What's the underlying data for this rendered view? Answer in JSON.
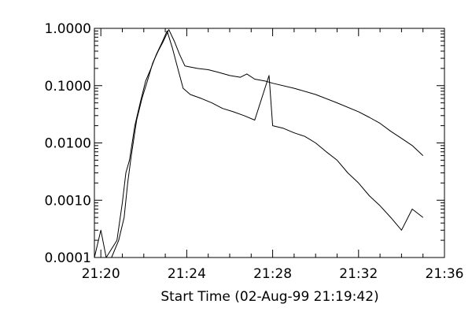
{
  "chart_data": {
    "type": "line",
    "title": "",
    "xlabel": "Start Time (02-Aug-99 21:19:42)",
    "ylabel": "",
    "yscale": "log",
    "xlim": [
      "21:19:42",
      "21:36:00"
    ],
    "ylim": [
      0.0001,
      1.0
    ],
    "grid": false,
    "x_ticks": [
      "21:20",
      "21:24",
      "21:28",
      "21:32",
      "21:36"
    ],
    "y_ticks": [
      "0.0001",
      "0.0010",
      "0.0100",
      "0.1000",
      "1.0000"
    ],
    "series": [
      {
        "points": [
          [
            "21:20:30",
            0.0001
          ],
          [
            "21:20:50",
            0.0002
          ],
          [
            "21:21:05",
            0.0005
          ],
          [
            "21:21:15",
            0.002
          ],
          [
            "21:21:25",
            0.006
          ],
          [
            "21:21:40",
            0.025
          ],
          [
            "21:21:55",
            0.06
          ],
          [
            "21:22:10",
            0.12
          ],
          [
            "21:22:25",
            0.25
          ],
          [
            "21:22:40",
            0.4
          ],
          [
            "21:22:55",
            0.6
          ],
          [
            "21:23:10",
            0.95
          ],
          [
            "21:23:25",
            0.6
          ],
          [
            "21:23:40",
            0.35
          ],
          [
            "21:23:55",
            0.22
          ],
          [
            "21:24:30",
            0.2
          ],
          [
            "21:25:00",
            0.19
          ],
          [
            "21:25:30",
            0.17
          ],
          [
            "21:26:00",
            0.15
          ],
          [
            "21:26:30",
            0.14
          ],
          [
            "21:26:48",
            0.16
          ],
          [
            "21:27:10",
            0.13
          ],
          [
            "21:27:40",
            0.12
          ],
          [
            "21:28:00",
            0.11
          ],
          [
            "21:29:00",
            0.09
          ],
          [
            "21:30:00",
            0.07
          ],
          [
            "21:31:00",
            0.05
          ],
          [
            "21:32:00",
            0.035
          ],
          [
            "21:32:30",
            0.028
          ],
          [
            "21:33:00",
            0.022
          ],
          [
            "21:33:30",
            0.016
          ],
          [
            "21:34:00",
            0.012
          ],
          [
            "21:34:30",
            0.009
          ],
          [
            "21:35:00",
            0.006
          ]
        ]
      },
      {
        "points": [
          [
            "21:19:42",
            0.0001
          ],
          [
            "21:20:00",
            0.0003
          ],
          [
            "21:20:15",
            0.0001
          ],
          [
            "21:20:45",
            0.0002
          ],
          [
            "21:21:00",
            0.0009
          ],
          [
            "21:21:10",
            0.003
          ],
          [
            "21:21:20",
            0.005
          ],
          [
            "21:21:35",
            0.02
          ],
          [
            "21:21:50",
            0.05
          ],
          [
            "21:22:05",
            0.12
          ],
          [
            "21:22:20",
            0.2
          ],
          [
            "21:22:35",
            0.35
          ],
          [
            "21:22:50",
            0.55
          ],
          [
            "21:23:05",
            0.9
          ],
          [
            "21:23:20",
            0.45
          ],
          [
            "21:23:35",
            0.2
          ],
          [
            "21:23:50",
            0.09
          ],
          [
            "21:24:10",
            0.07
          ],
          [
            "21:24:40",
            0.06
          ],
          [
            "21:25:10",
            0.05
          ],
          [
            "21:25:40",
            0.04
          ],
          [
            "21:26:10",
            0.035
          ],
          [
            "21:26:40",
            0.03
          ],
          [
            "21:27:10",
            0.025
          ],
          [
            "21:27:50",
            0.15
          ],
          [
            "21:28:00",
            0.02
          ],
          [
            "21:28:30",
            0.018
          ],
          [
            "21:29:00",
            0.015
          ],
          [
            "21:29:30",
            0.013
          ],
          [
            "21:30:00",
            0.01
          ],
          [
            "21:30:30",
            0.007
          ],
          [
            "21:31:00",
            0.005
          ],
          [
            "21:31:30",
            0.003
          ],
          [
            "21:32:00",
            0.002
          ],
          [
            "21:32:30",
            0.0012
          ],
          [
            "21:33:00",
            0.0008
          ],
          [
            "21:33:30",
            0.0005
          ],
          [
            "21:34:00",
            0.0003
          ],
          [
            "21:34:30",
            0.0007
          ],
          [
            "21:35:00",
            0.0005
          ]
        ]
      }
    ]
  }
}
